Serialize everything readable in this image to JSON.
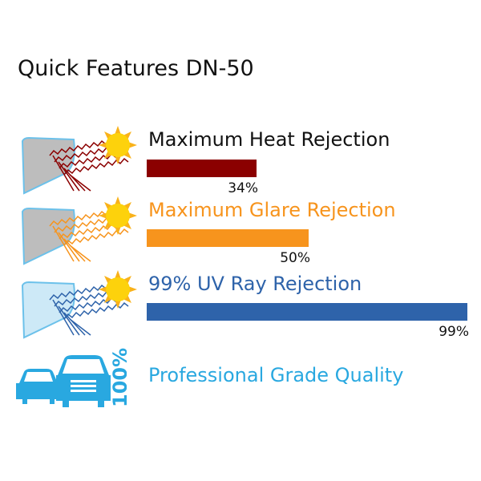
{
  "title": "Quick Features DN-50",
  "features": [
    {
      "label": "Maximum Heat Rejection",
      "value_label": "34%",
      "value": 34,
      "color": "#8b0000",
      "label_color": "#111111",
      "icon": "windshield-heat-rays-sun-icon"
    },
    {
      "label": "Maximum Glare Rejection",
      "value_label": "50%",
      "value": 50,
      "color": "#f7941d",
      "label_color": "#f7941d",
      "icon": "windshield-glare-rays-sun-icon"
    },
    {
      "label": "99% UV Ray Rejection",
      "value_label": "99%",
      "value": 99,
      "color": "#2e63aa",
      "label_color": "#2e63aa",
      "icon": "windshield-uv-rays-sun-icon"
    }
  ],
  "quality": {
    "label": "Professional Grade Quality",
    "badge": "100%",
    "color": "#29a8e0",
    "icon": "cars-icon"
  },
  "chart_data": {
    "type": "bar",
    "orientation": "horizontal",
    "categories": [
      "Maximum Heat Rejection",
      "Maximum Glare Rejection",
      "99% UV Ray Rejection"
    ],
    "values": [
      34,
      50,
      99
    ],
    "data_labels": [
      "34%",
      "50%",
      "99%"
    ],
    "colors": [
      "#8b0000",
      "#f7941d",
      "#2e63aa"
    ],
    "xlim": [
      0,
      100
    ],
    "grid": false
  }
}
